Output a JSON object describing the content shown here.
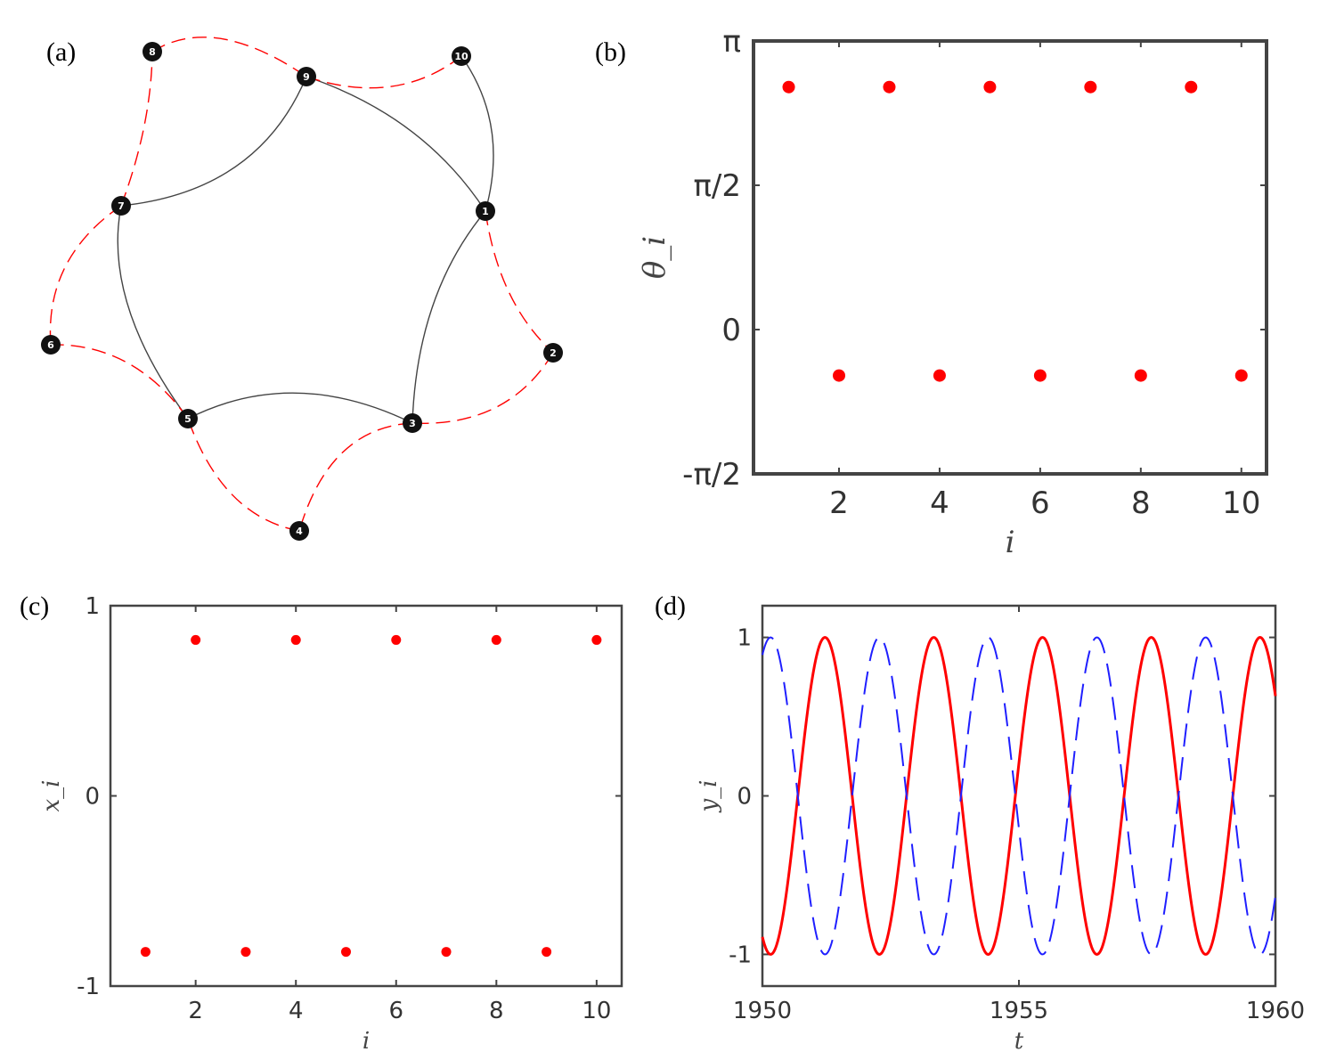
{
  "panels": {
    "a": {
      "label": "(a)"
    },
    "b": {
      "label": "(b)"
    },
    "c": {
      "label": "(c)"
    },
    "d": {
      "label": "(d)"
    }
  },
  "colors": {
    "red": "#ff0000",
    "blue": "#1f1fff",
    "node": "#111111",
    "solid_edge": "#444444",
    "axis": "#444444"
  },
  "chart_data": [
    {
      "type": "network",
      "panel": "a",
      "nodes": [
        "1",
        "2",
        "3",
        "4",
        "5",
        "6",
        "7",
        "8",
        "9",
        "10"
      ],
      "edges_solid": [
        [
          "1",
          "3"
        ],
        [
          "3",
          "5"
        ],
        [
          "5",
          "7"
        ],
        [
          "7",
          "9"
        ],
        [
          "9",
          "1"
        ],
        [
          "1",
          "10"
        ]
      ],
      "edges_dashed": [
        [
          "1",
          "2"
        ],
        [
          "2",
          "3"
        ],
        [
          "3",
          "4"
        ],
        [
          "4",
          "5"
        ],
        [
          "5",
          "6"
        ],
        [
          "6",
          "7"
        ],
        [
          "7",
          "8"
        ],
        [
          "8",
          "9"
        ],
        [
          "9",
          "10"
        ]
      ]
    },
    {
      "type": "scatter",
      "panel": "b",
      "x": [
        1,
        2,
        3,
        4,
        5,
        6,
        7,
        8,
        9,
        10
      ],
      "y": [
        2.64,
        -0.5,
        2.64,
        -0.5,
        2.64,
        -0.5,
        2.64,
        -0.5,
        2.64,
        -0.5
      ],
      "xlabel": "i",
      "ylabel": "θ_i",
      "xlim": [
        0.3,
        10.5
      ],
      "ylim": [
        -1.5708,
        3.1416
      ],
      "xticks": [
        2,
        4,
        6,
        8,
        10
      ],
      "xtick_labels": [
        "2",
        "4",
        "6",
        "8",
        "10"
      ],
      "yticks": [
        -1.5708,
        0,
        1.5708,
        3.1416
      ],
      "ytick_labels": [
        "-π/2",
        "0",
        "π/2",
        "π"
      ],
      "grid": false
    },
    {
      "type": "scatter",
      "panel": "c",
      "x": [
        1,
        2,
        3,
        4,
        5,
        6,
        7,
        8,
        9,
        10
      ],
      "y": [
        -0.82,
        0.82,
        -0.82,
        0.82,
        -0.82,
        0.82,
        -0.82,
        0.82,
        -0.82,
        0.82
      ],
      "xlabel": "i",
      "ylabel": "x_i",
      "xlim": [
        0.3,
        10.5
      ],
      "ylim": [
        -1,
        1
      ],
      "xticks": [
        2,
        4,
        6,
        8,
        10
      ],
      "xtick_labels": [
        "2",
        "4",
        "6",
        "8",
        "10"
      ],
      "yticks": [
        -1,
        0,
        1
      ],
      "ytick_labels": [
        "-1",
        "0",
        "1"
      ],
      "grid": false
    },
    {
      "type": "line",
      "panel": "d",
      "xlabel": "t",
      "ylabel": "y_i",
      "xlim": [
        1950,
        1960
      ],
      "ylim": [
        -1.2,
        1.2
      ],
      "xticks": [
        1950,
        1955,
        1960
      ],
      "xtick_labels": [
        "1950",
        "1955",
        "1960"
      ],
      "yticks": [
        -1,
        0,
        1
      ],
      "ytick_labels": [
        "-1",
        "0",
        "1"
      ],
      "series": [
        {
          "style": "solid",
          "color": "#ff0000",
          "amplitude": 1,
          "period": 2.12,
          "peak_times": [
            1951.22,
            1953.34,
            1955.46,
            1957.58,
            1959.7
          ]
        },
        {
          "style": "dashed",
          "color": "#1f1fff",
          "amplitude": 1,
          "period": 2.12,
          "peak_times": [
            1950.16,
            1952.28,
            1954.4,
            1956.52,
            1958.64
          ]
        }
      ],
      "grid": false
    }
  ]
}
